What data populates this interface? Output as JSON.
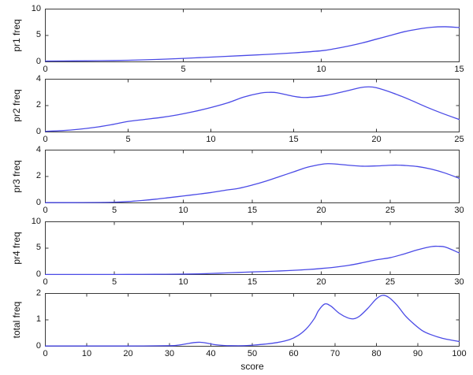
{
  "colors": {
    "line": "#4a4ae6",
    "axis": "#3a3a3a",
    "text": "#151515",
    "background": "#ffffff"
  },
  "chart_data": [
    {
      "type": "line",
      "ylabel": "pr1 freq",
      "xlabel": "",
      "xlim": [
        0,
        15
      ],
      "ylim": [
        0,
        10
      ],
      "xticks": [
        0,
        5,
        10,
        15
      ],
      "yticks": [
        0,
        5,
        10
      ],
      "x": [
        0,
        1,
        2,
        3,
        4,
        5,
        6,
        7,
        8,
        9,
        10,
        10.5,
        11,
        11.5,
        12,
        12.5,
        13,
        13.5,
        14,
        14.5,
        15
      ],
      "y": [
        0.15,
        0.18,
        0.22,
        0.3,
        0.45,
        0.65,
        0.9,
        1.15,
        1.4,
        1.7,
        2.1,
        2.5,
        3.0,
        3.6,
        4.3,
        5.0,
        5.7,
        6.2,
        6.55,
        6.65,
        6.5
      ]
    },
    {
      "type": "line",
      "ylabel": "pr2 freq",
      "xlabel": "",
      "xlim": [
        0,
        25
      ],
      "ylim": [
        0,
        4
      ],
      "xticks": [
        0,
        5,
        10,
        15,
        20,
        25
      ],
      "yticks": [
        0,
        2,
        4
      ],
      "x": [
        0,
        1,
        2,
        3,
        4,
        5,
        6,
        7,
        8,
        9,
        10,
        11,
        12,
        13,
        13.5,
        14,
        15,
        15.5,
        16,
        17,
        18,
        19,
        19.5,
        20,
        21,
        22,
        23,
        24,
        25
      ],
      "y": [
        0.05,
        0.1,
        0.2,
        0.35,
        0.55,
        0.8,
        0.95,
        1.1,
        1.3,
        1.55,
        1.85,
        2.2,
        2.65,
        2.95,
        3.0,
        2.97,
        2.7,
        2.62,
        2.63,
        2.78,
        3.05,
        3.35,
        3.42,
        3.35,
        2.95,
        2.45,
        1.9,
        1.4,
        0.95
      ]
    },
    {
      "type": "line",
      "ylabel": "pr3 freq",
      "xlabel": "",
      "xlim": [
        0,
        30
      ],
      "ylim": [
        0,
        4
      ],
      "xticks": [
        0,
        5,
        10,
        15,
        20,
        25,
        30
      ],
      "yticks": [
        0,
        2,
        4
      ],
      "x": [
        0,
        2,
        4,
        5,
        6,
        7,
        8,
        9,
        10,
        11,
        12,
        13,
        14,
        15,
        16,
        17,
        18,
        19,
        20,
        20.5,
        21,
        22,
        23,
        24,
        25,
        25.5,
        26,
        27,
        28,
        29,
        30
      ],
      "y": [
        0.02,
        0.02,
        0.03,
        0.05,
        0.1,
        0.18,
        0.28,
        0.4,
        0.52,
        0.65,
        0.78,
        0.95,
        1.1,
        1.35,
        1.65,
        2.0,
        2.35,
        2.7,
        2.92,
        2.97,
        2.95,
        2.85,
        2.78,
        2.8,
        2.85,
        2.86,
        2.84,
        2.75,
        2.55,
        2.25,
        1.86
      ]
    },
    {
      "type": "line",
      "ylabel": "pr4 freq",
      "xlabel": "",
      "xlim": [
        0,
        30
      ],
      "ylim": [
        0,
        10
      ],
      "xticks": [
        0,
        5,
        10,
        15,
        20,
        25,
        30
      ],
      "yticks": [
        0,
        5,
        10
      ],
      "x": [
        0,
        2,
        4,
        6,
        8,
        10,
        11,
        12,
        13,
        14,
        15,
        16,
        17,
        18,
        19,
        20,
        21,
        22,
        23,
        24,
        25,
        26,
        27,
        28,
        28.5,
        29,
        30
      ],
      "y": [
        0.02,
        0.02,
        0.02,
        0.03,
        0.05,
        0.08,
        0.12,
        0.2,
        0.3,
        0.4,
        0.5,
        0.58,
        0.68,
        0.8,
        0.95,
        1.15,
        1.4,
        1.75,
        2.25,
        2.8,
        3.2,
        3.9,
        4.7,
        5.3,
        5.35,
        5.2,
        4.1
      ]
    },
    {
      "type": "line",
      "ylabel": "total freq",
      "xlabel": "score",
      "xlim": [
        0,
        100
      ],
      "ylim": [
        0,
        2
      ],
      "xticks": [
        0,
        10,
        20,
        30,
        40,
        50,
        60,
        70,
        80,
        90,
        100
      ],
      "yticks": [
        0,
        1,
        2
      ],
      "x": [
        0,
        10,
        20,
        30,
        32,
        34,
        36,
        37.5,
        39,
        41,
        43,
        45,
        48,
        50,
        53,
        56,
        59,
        61,
        63,
        65,
        66,
        67.5,
        69,
        71,
        73,
        74.5,
        76,
        78,
        80,
        81.5,
        83,
        85,
        87,
        89,
        91,
        93,
        96,
        100
      ],
      "y": [
        0.01,
        0.01,
        0.01,
        0.02,
        0.04,
        0.09,
        0.14,
        0.15,
        0.12,
        0.06,
        0.03,
        0.02,
        0.02,
        0.04,
        0.08,
        0.14,
        0.25,
        0.4,
        0.65,
        1.05,
        1.35,
        1.6,
        1.52,
        1.25,
        1.08,
        1.04,
        1.15,
        1.45,
        1.8,
        1.93,
        1.85,
        1.55,
        1.15,
        0.85,
        0.6,
        0.45,
        0.3,
        0.18
      ]
    }
  ]
}
